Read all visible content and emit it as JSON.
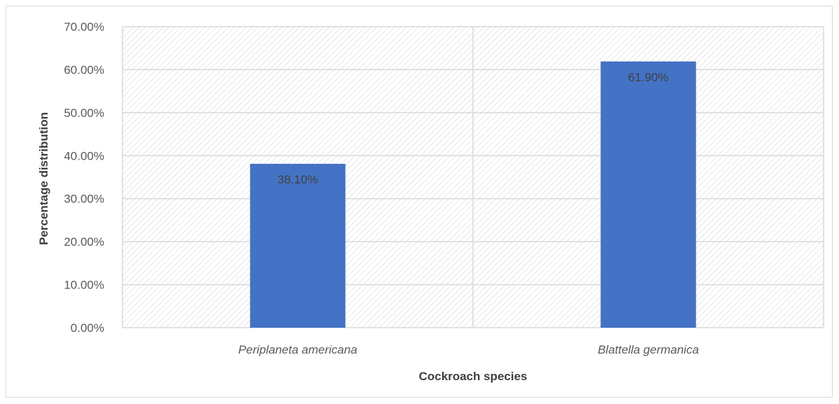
{
  "chart_data": {
    "type": "bar",
    "title": "",
    "categories": [
      "Periplaneta americana",
      "Blattella germanica"
    ],
    "values": [
      38.1,
      61.9
    ],
    "data_labels": [
      "38.10%",
      "61.90%"
    ],
    "xlabel": "Cockroach species",
    "ylabel": "Percentage distribution",
    "ylim": [
      0,
      70
    ],
    "y_ticks": [
      0,
      10,
      20,
      30,
      40,
      50,
      60,
      70
    ],
    "y_tick_labels": [
      "0.00%",
      "10.00%",
      "20.00%",
      "30.00%",
      "40.00%",
      "50.00%",
      "60.00%",
      "70.00%"
    ],
    "grid": true,
    "legend": "none",
    "bar_color": "#4472c4",
    "plot_background": "hatched"
  }
}
